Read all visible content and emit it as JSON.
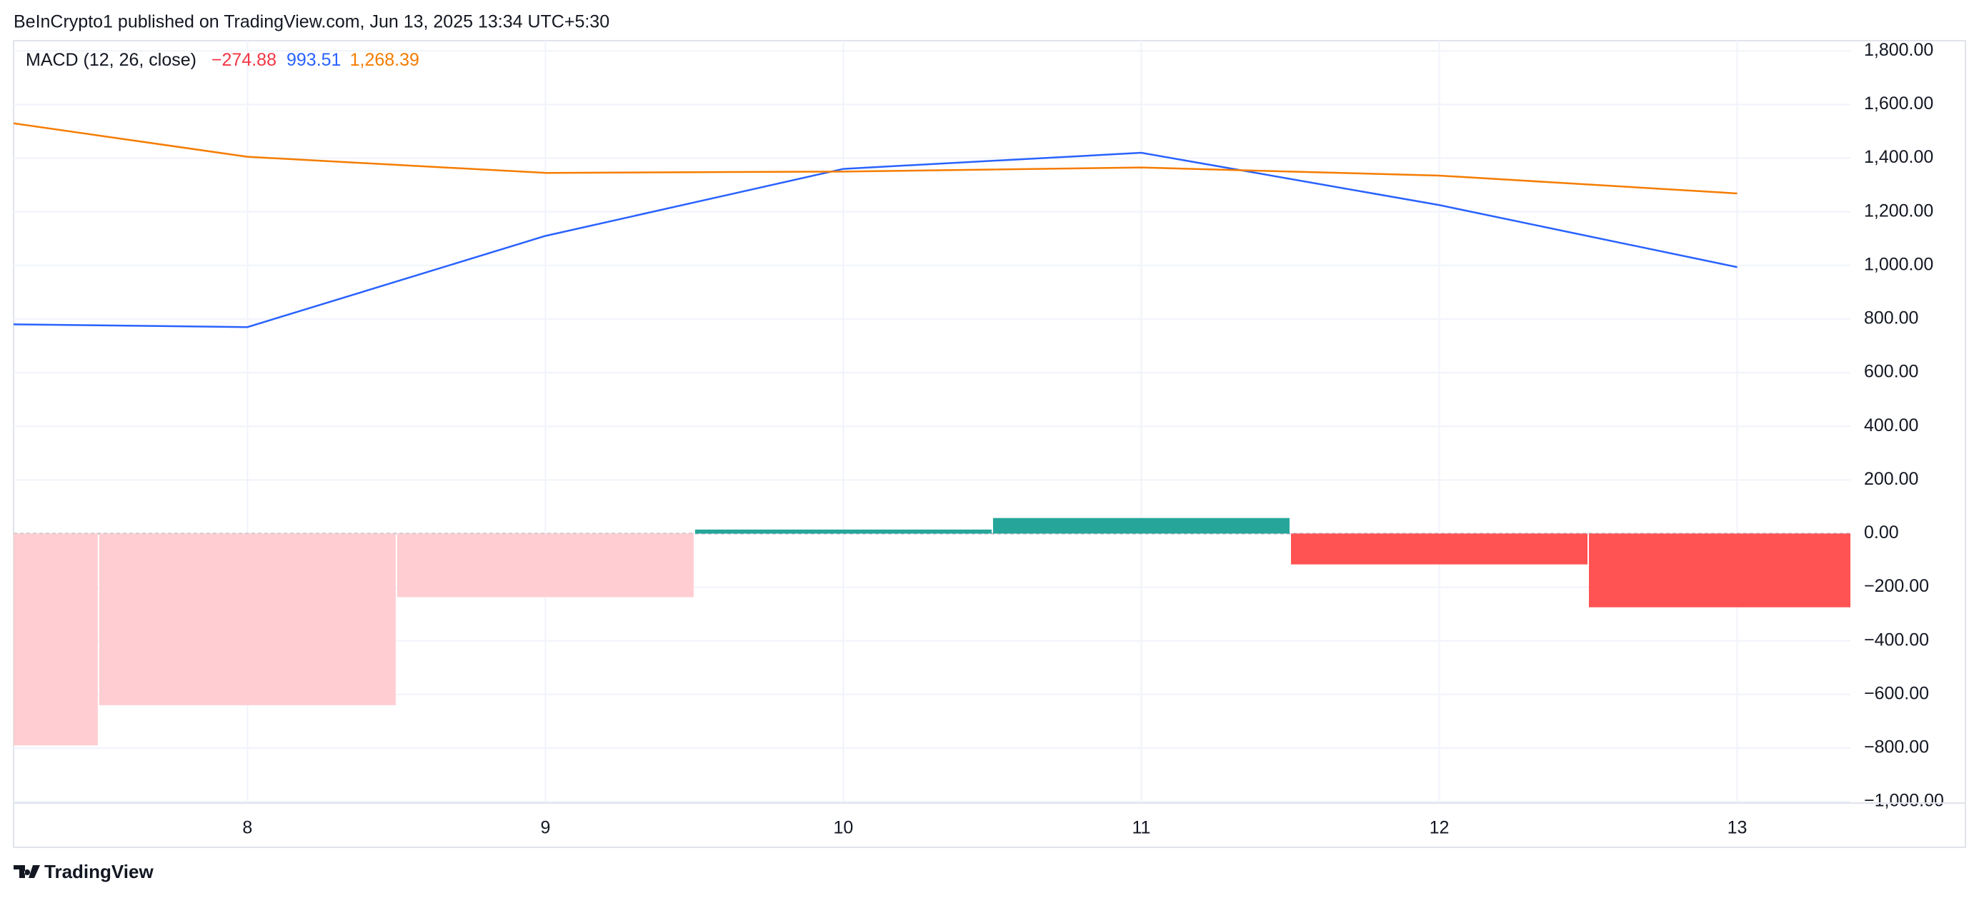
{
  "header": "BeInCrypto1 published on TradingView.com, Jun 13, 2025 13:34 UTC+5:30",
  "footer": "TradingView",
  "chart_data": {
    "type": "macd",
    "legend_title": "MACD (12, 26, close)",
    "x": [
      7,
      8,
      9,
      10,
      11,
      12,
      13
    ],
    "xlim": [
      7.215,
      13.38
    ],
    "xticks": [
      8,
      9,
      10,
      11,
      12,
      13
    ],
    "ylim": [
      -1005,
      1838
    ],
    "yticks": [
      {
        "value": 1800,
        "label": "1,800.00"
      },
      {
        "value": 1600,
        "label": "1,600.00"
      },
      {
        "value": 1400,
        "label": "1,400.00"
      },
      {
        "value": 1200,
        "label": "1,200.00"
      },
      {
        "value": 1000,
        "label": "1,000.00"
      },
      {
        "value": 800,
        "label": "800.00"
      },
      {
        "value": 600,
        "label": "600.00"
      },
      {
        "value": 400,
        "label": "400.00"
      },
      {
        "value": 200,
        "label": "200.00"
      },
      {
        "value": 0,
        "label": "0.00"
      },
      {
        "value": -200,
        "label": "−200.00"
      },
      {
        "value": -400,
        "label": "−400.00"
      },
      {
        "value": -600,
        "label": "−600.00"
      },
      {
        "value": -800,
        "label": "−800.00"
      },
      {
        "value": -1000,
        "label": "−1,000.00"
      }
    ],
    "grid": true,
    "histogram": {
      "values": [
        -790,
        -640,
        -237,
        15,
        58,
        -115,
        -274.88
      ],
      "colors": [
        "#ffcdd2",
        "#ffcdd2",
        "#ffcdd2",
        "#26a69a",
        "#26a69a",
        "#ff5252",
        "#ff5252"
      ],
      "label": "−274.88",
      "label_color": "#f23645"
    },
    "series": [
      {
        "color": "#2962ff",
        "values": [
          783,
          770,
          1110,
          1360,
          1420,
          1225,
          993.51
        ],
        "label": "993.51",
        "label_color": "#2962ff"
      },
      {
        "color": "#f57c00",
        "values": [
          1564,
          1405,
          1345,
          1350,
          1365,
          1335,
          1268.39
        ],
        "label": "1,268.39",
        "label_color": "#f57c00"
      }
    ]
  }
}
